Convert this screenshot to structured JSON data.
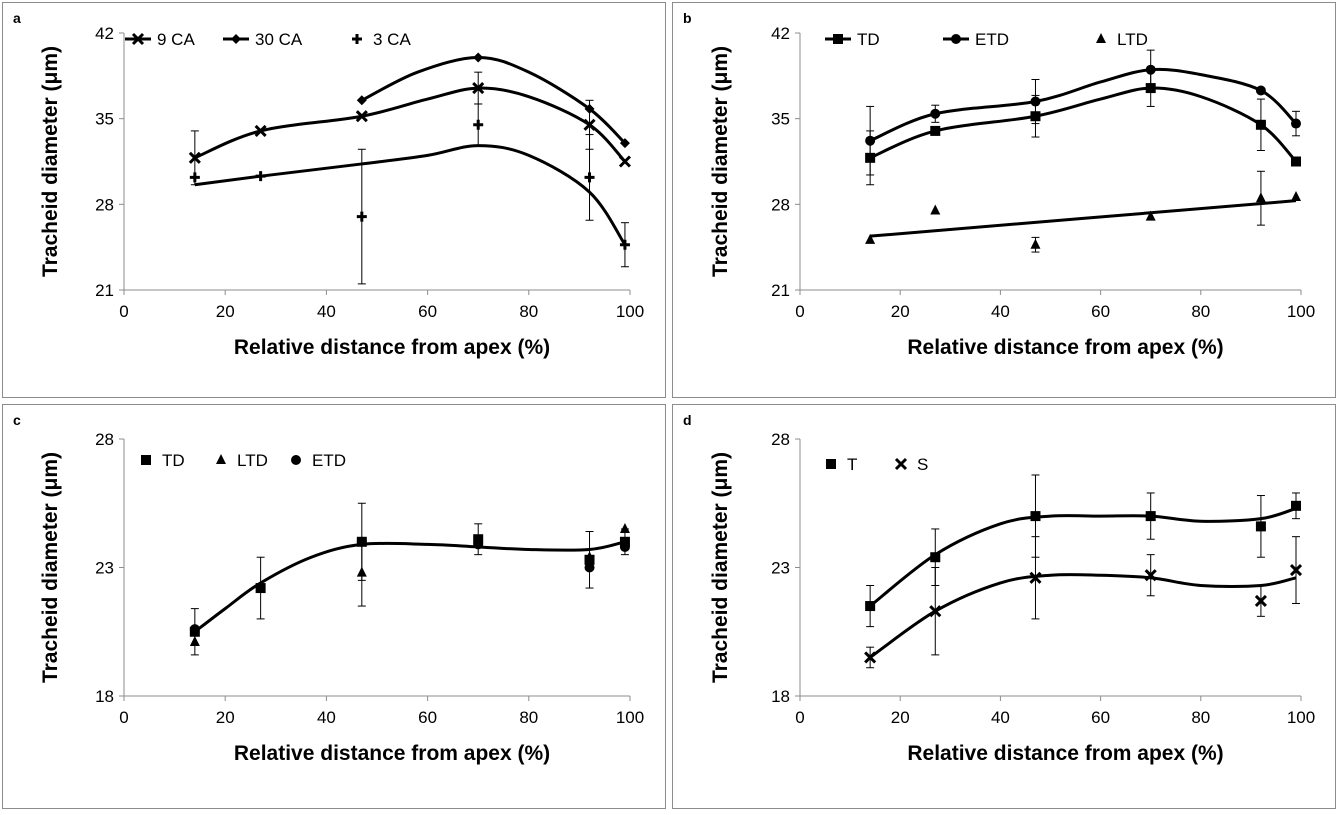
{
  "chart_data": [
    {
      "id": "a",
      "type": "scatter",
      "panel_label": "a",
      "xlabel": "Relative distance from apex (%)",
      "ylabel": "Tracheid diameter (μm)",
      "xlim": [
        0,
        100
      ],
      "ylim": [
        21,
        42
      ],
      "xticks": [
        0,
        20,
        40,
        60,
        80,
        100
      ],
      "yticks": [
        21,
        28,
        35,
        42
      ],
      "legend_position": "top-left",
      "series": [
        {
          "name": "9 CA",
          "marker": "x",
          "legend_line": true,
          "x": [
            14,
            27,
            47,
            70,
            92,
            99
          ],
          "y": [
            31.8,
            34.0,
            35.2,
            37.5,
            34.5,
            31.5
          ],
          "err": [
            2.2,
            0,
            0,
            1.3,
            2.0,
            0
          ],
          "curve": [
            [
              14,
              31.8
            ],
            [
              27,
              34.0
            ],
            [
              47,
              35.2
            ],
            [
              60,
              36.6
            ],
            [
              70,
              37.5
            ],
            [
              80,
              36.8
            ],
            [
              92,
              34.5
            ],
            [
              99,
              31.5
            ]
          ]
        },
        {
          "name": "30 CA",
          "marker": "diamond",
          "legend_line": true,
          "x": [
            47,
            70,
            92,
            99
          ],
          "y": [
            36.5,
            40.0,
            35.8,
            33.0
          ],
          "err": [
            0,
            0,
            0,
            0
          ],
          "curve": [
            [
              47,
              36.5
            ],
            [
              58,
              38.8
            ],
            [
              70,
              40.0
            ],
            [
              80,
              38.8
            ],
            [
              92,
              35.8
            ],
            [
              99,
              33.0
            ]
          ]
        },
        {
          "name": "3 CA",
          "marker": "plus",
          "legend_line": false,
          "x": [
            14,
            27,
            47,
            70,
            92,
            99
          ],
          "y": [
            30.2,
            30.3,
            27.0,
            34.5,
            30.2,
            24.7
          ],
          "err": [
            0,
            0,
            5.5,
            1.7,
            3.5,
            1.8
          ],
          "curve": [
            [
              14,
              29.6
            ],
            [
              27,
              30.3
            ],
            [
              47,
              31.3
            ],
            [
              60,
              32.0
            ],
            [
              70,
              32.8
            ],
            [
              80,
              32.0
            ],
            [
              92,
              29.0
            ],
            [
              99,
              24.7
            ]
          ]
        }
      ]
    },
    {
      "id": "b",
      "type": "scatter",
      "panel_label": "b",
      "xlabel": "Relative distance from apex (%)",
      "ylabel": "Tracheid diameter (μm)",
      "xlim": [
        0,
        100
      ],
      "ylim": [
        21,
        42
      ],
      "xticks": [
        0,
        20,
        40,
        60,
        80,
        100
      ],
      "yticks": [
        21,
        28,
        35,
        42
      ],
      "legend_position": "top-left",
      "series": [
        {
          "name": "TD",
          "marker": "square",
          "legend_line": true,
          "x": [
            14,
            27,
            47,
            70,
            92,
            99
          ],
          "y": [
            31.8,
            34.0,
            35.2,
            37.5,
            34.5,
            31.5
          ],
          "err": [
            2.2,
            0,
            1.7,
            1.5,
            2.1,
            0
          ],
          "curve": [
            [
              14,
              31.8
            ],
            [
              27,
              34.0
            ],
            [
              47,
              35.2
            ],
            [
              60,
              36.6
            ],
            [
              70,
              37.5
            ],
            [
              80,
              36.8
            ],
            [
              92,
              34.5
            ],
            [
              99,
              31.5
            ]
          ]
        },
        {
          "name": "ETD",
          "marker": "circle",
          "legend_line": true,
          "x": [
            14,
            27,
            47,
            70,
            92,
            99
          ],
          "y": [
            33.2,
            35.4,
            36.4,
            39.0,
            37.3,
            34.6
          ],
          "err": [
            2.8,
            0.7,
            1.8,
            1.6,
            0,
            1.0
          ],
          "curve": [
            [
              14,
              33.2
            ],
            [
              27,
              35.4
            ],
            [
              47,
              36.4
            ],
            [
              60,
              38.0
            ],
            [
              70,
              39.0
            ],
            [
              80,
              38.6
            ],
            [
              92,
              37.3
            ],
            [
              99,
              34.6
            ]
          ]
        },
        {
          "name": "LTD",
          "marker": "triangle",
          "legend_line": false,
          "x": [
            14,
            27,
            47,
            70,
            92,
            99
          ],
          "y": [
            25.1,
            27.5,
            24.7,
            27.0,
            28.5,
            28.6
          ],
          "err": [
            0,
            0,
            0.6,
            0,
            2.2,
            0
          ],
          "curve": [
            [
              14,
              25.4
            ],
            [
              99,
              28.3
            ]
          ]
        }
      ]
    },
    {
      "id": "c",
      "type": "scatter",
      "panel_label": "c",
      "xlabel": "Relative distance from apex (%)",
      "ylabel": "Tracheid diameter (μm)",
      "xlim": [
        0,
        100
      ],
      "ylim": [
        18,
        28
      ],
      "xticks": [
        0,
        20,
        40,
        60,
        80,
        100
      ],
      "yticks": [
        18,
        23,
        28
      ],
      "legend_position": "top-left",
      "series": [
        {
          "name": "TD",
          "marker": "square",
          "legend_line": false,
          "x": [
            14,
            27,
            47,
            70,
            92,
            99
          ],
          "y": [
            20.5,
            22.2,
            24.0,
            24.1,
            23.3,
            24.0
          ],
          "err": [
            0.9,
            1.2,
            1.5,
            0.6,
            1.1,
            0.5
          ],
          "curve": []
        },
        {
          "name": "LTD",
          "marker": "triangle",
          "legend_line": false,
          "x": [
            14,
            47,
            70,
            92,
            99
          ],
          "y": [
            20.1,
            22.8,
            24.0,
            23.4,
            24.5
          ],
          "err": [
            0,
            1.3,
            0,
            0,
            0
          ],
          "curve": []
        },
        {
          "name": "ETD",
          "marker": "circle",
          "legend_line": false,
          "x": [
            14,
            47,
            70,
            92,
            99
          ],
          "y": [
            20.6,
            24.0,
            23.9,
            23.0,
            23.8
          ],
          "err": [
            0,
            0,
            0,
            0,
            0
          ],
          "curve": []
        },
        {
          "name": "",
          "marker": "none",
          "legend_line": false,
          "x": [],
          "y": [],
          "err": [],
          "curve": [
            [
              14,
              20.5
            ],
            [
              20,
              21.4
            ],
            [
              27,
              22.4
            ],
            [
              37,
              23.4
            ],
            [
              47,
              23.9
            ],
            [
              60,
              23.9
            ],
            [
              70,
              23.8
            ],
            [
              80,
              23.7
            ],
            [
              92,
              23.7
            ],
            [
              99,
              24.0
            ]
          ]
        }
      ]
    },
    {
      "id": "d",
      "type": "scatter",
      "panel_label": "d",
      "xlabel": "Relative distance from apex (%)",
      "ylabel": "Tracheid diameter (μm)",
      "xlim": [
        0,
        100
      ],
      "ylim": [
        18,
        28
      ],
      "xticks": [
        0,
        20,
        40,
        60,
        80,
        100
      ],
      "yticks": [
        18,
        23,
        28
      ],
      "legend_position": "top-left",
      "series": [
        {
          "name": "T",
          "marker": "square",
          "legend_line": false,
          "x": [
            14,
            27,
            47,
            70,
            92,
            99
          ],
          "y": [
            21.5,
            23.4,
            25.0,
            25.0,
            24.6,
            25.4
          ],
          "err": [
            0.8,
            1.1,
            1.6,
            0.9,
            1.2,
            0.5
          ],
          "curve": [
            [
              14,
              21.5
            ],
            [
              27,
              23.5
            ],
            [
              40,
              24.7
            ],
            [
              50,
              25.0
            ],
            [
              60,
              25.0
            ],
            [
              70,
              25.0
            ],
            [
              80,
              24.8
            ],
            [
              92,
              24.9
            ],
            [
              99,
              25.3
            ]
          ]
        },
        {
          "name": "S",
          "marker": "x",
          "legend_line": false,
          "x": [
            14,
            27,
            47,
            70,
            92,
            99
          ],
          "y": [
            19.5,
            21.3,
            22.6,
            22.7,
            21.7,
            22.9
          ],
          "err": [
            0.4,
            1.7,
            1.6,
            0.8,
            0.6,
            1.3
          ],
          "curve": [
            [
              14,
              19.5
            ],
            [
              27,
              21.3
            ],
            [
              40,
              22.4
            ],
            [
              50,
              22.7
            ],
            [
              60,
              22.7
            ],
            [
              70,
              22.6
            ],
            [
              80,
              22.3
            ],
            [
              92,
              22.3
            ],
            [
              99,
              22.6
            ]
          ]
        }
      ]
    }
  ]
}
